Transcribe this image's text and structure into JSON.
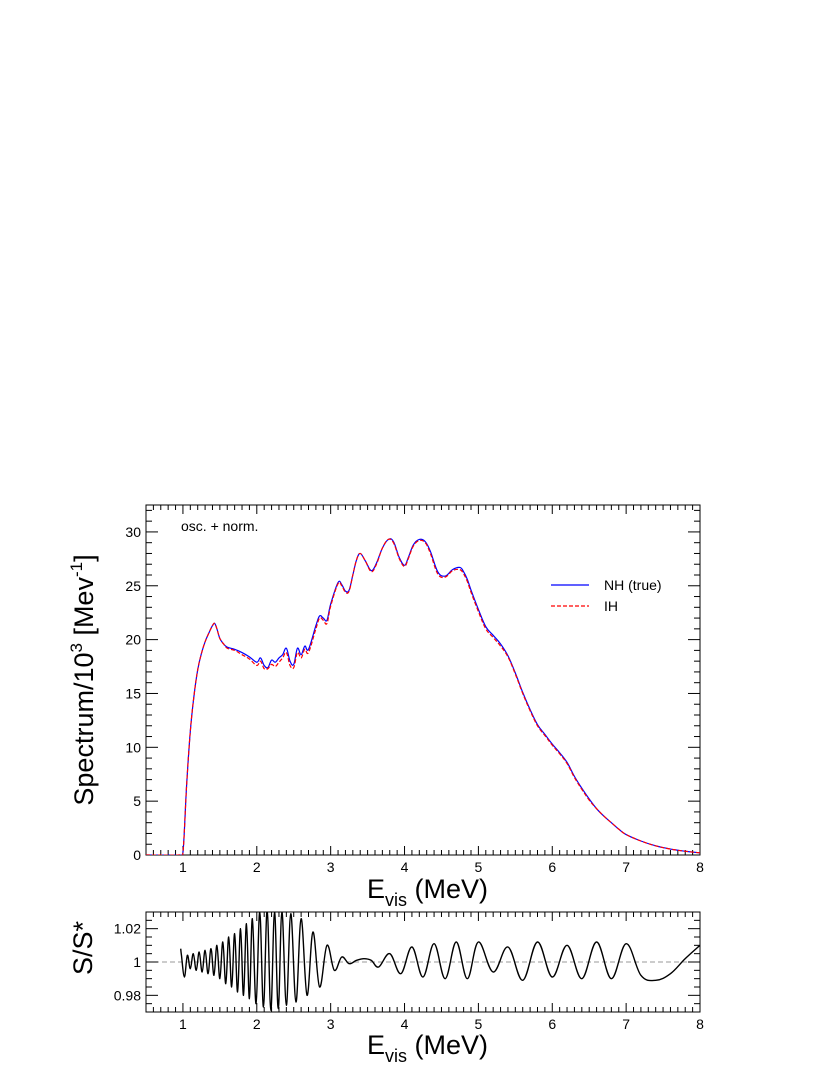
{
  "chart_data": [
    {
      "type": "line",
      "annotation": "osc. + norm.",
      "ylabel": {
        "main": "Spectrum/10",
        "sup1": "3",
        "mid": " [Mev",
        "sup2": "-1",
        "end": "]"
      },
      "xlabel": {
        "main": "E",
        "sub": "vis",
        "end": " (MeV)"
      },
      "xlim": [
        0.5,
        8
      ],
      "ylim": [
        0,
        32.5
      ],
      "xticks": [
        1,
        2,
        3,
        4,
        5,
        6,
        7,
        8
      ],
      "yticks": [
        0,
        5,
        10,
        15,
        20,
        25,
        30
      ],
      "legend_position": "upper-right",
      "series": [
        {
          "name": "NH (true)",
          "color": "#0000ff",
          "style": "solid",
          "x": [
            0.5,
            0.95,
            1.0,
            1.05,
            1.1,
            1.15,
            1.2,
            1.25,
            1.3,
            1.35,
            1.4,
            1.43,
            1.46,
            1.5,
            1.55,
            1.6,
            1.7,
            1.8,
            1.9,
            2.0,
            2.05,
            2.1,
            2.15,
            2.2,
            2.25,
            2.3,
            2.35,
            2.4,
            2.45,
            2.5,
            2.55,
            2.6,
            2.65,
            2.7,
            2.8,
            2.85,
            2.9,
            2.95,
            3.0,
            3.1,
            3.15,
            3.2,
            3.25,
            3.3,
            3.35,
            3.4,
            3.47,
            3.55,
            3.62,
            3.7,
            3.78,
            3.85,
            3.93,
            4.0,
            4.05,
            4.12,
            4.2,
            4.28,
            4.35,
            4.45,
            4.55,
            4.65,
            4.75,
            4.8,
            4.85,
            4.9,
            5.0,
            5.1,
            5.2,
            5.3,
            5.4,
            5.5,
            5.6,
            5.7,
            5.8,
            5.9,
            6.0,
            6.1,
            6.2,
            6.3,
            6.4,
            6.5,
            6.6,
            6.7,
            6.8,
            6.9,
            7.0,
            7.2,
            7.4,
            7.6,
            7.8,
            8.0
          ],
          "y": [
            0,
            0,
            0.2,
            6.5,
            11.5,
            14.8,
            17.2,
            18.7,
            19.8,
            20.6,
            21.3,
            21.5,
            21.0,
            20.1,
            19.6,
            19.3,
            19.1,
            18.8,
            18.4,
            17.9,
            18.3,
            17.6,
            17.4,
            18.1,
            17.9,
            18.3,
            18.6,
            19.2,
            18.0,
            17.7,
            19.2,
            18.6,
            19.4,
            19.1,
            21.3,
            22.2,
            22.0,
            21.8,
            23.3,
            25.3,
            25.1,
            24.5,
            24.6,
            26.0,
            27.4,
            28.0,
            27.3,
            26.4,
            27.1,
            28.5,
            29.3,
            29.1,
            27.6,
            26.9,
            27.6,
            28.8,
            29.3,
            29.1,
            28.2,
            26.3,
            25.9,
            26.5,
            26.7,
            26.3,
            25.6,
            24.6,
            22.8,
            21.2,
            20.4,
            19.6,
            18.5,
            16.9,
            15.1,
            13.5,
            12.1,
            11.2,
            10.3,
            9.5,
            8.6,
            7.3,
            6.2,
            5.2,
            4.3,
            3.6,
            3.0,
            2.4,
            1.9,
            1.3,
            0.85,
            0.55,
            0.35,
            0.2
          ]
        },
        {
          "name": "IH",
          "color": "#ff0000",
          "style": "dashed",
          "x": [
            0.5,
            0.95,
            1.0,
            1.05,
            1.1,
            1.15,
            1.2,
            1.25,
            1.3,
            1.35,
            1.4,
            1.43,
            1.46,
            1.5,
            1.55,
            1.6,
            1.7,
            1.8,
            1.9,
            2.0,
            2.05,
            2.1,
            2.15,
            2.2,
            2.25,
            2.3,
            2.35,
            2.4,
            2.45,
            2.5,
            2.55,
            2.6,
            2.65,
            2.7,
            2.8,
            2.85,
            2.9,
            2.95,
            3.0,
            3.1,
            3.15,
            3.2,
            3.25,
            3.3,
            3.35,
            3.4,
            3.47,
            3.55,
            3.62,
            3.7,
            3.78,
            3.85,
            3.93,
            4.0,
            4.05,
            4.12,
            4.2,
            4.28,
            4.35,
            4.45,
            4.55,
            4.65,
            4.75,
            4.8,
            4.85,
            4.9,
            5.0,
            5.1,
            5.2,
            5.3,
            5.4,
            5.5,
            5.6,
            5.7,
            5.8,
            5.9,
            6.0,
            6.1,
            6.2,
            6.3,
            6.4,
            6.5,
            6.6,
            6.7,
            6.8,
            6.9,
            7.0,
            7.2,
            7.4,
            7.6,
            7.8,
            8.0
          ],
          "y": [
            0,
            0,
            0.2,
            6.5,
            11.5,
            14.8,
            17.2,
            18.7,
            19.8,
            20.6,
            21.3,
            21.5,
            21.0,
            20.1,
            19.6,
            19.2,
            19.0,
            18.6,
            18.2,
            17.6,
            18.0,
            17.3,
            17.3,
            17.7,
            17.5,
            17.9,
            18.3,
            18.8,
            17.6,
            17.4,
            18.8,
            18.3,
            19.1,
            18.8,
            21.0,
            22.0,
            21.8,
            21.5,
            23.1,
            25.2,
            25.0,
            24.4,
            24.5,
            26.0,
            27.4,
            28.0,
            27.3,
            26.3,
            27.0,
            28.5,
            29.3,
            29.0,
            27.5,
            26.8,
            27.5,
            28.7,
            29.2,
            29.0,
            28.0,
            26.1,
            25.8,
            26.4,
            26.5,
            26.1,
            25.4,
            24.4,
            22.6,
            21.0,
            20.2,
            19.4,
            18.4,
            16.8,
            15.0,
            13.4,
            12.0,
            11.1,
            10.2,
            9.4,
            8.5,
            7.2,
            6.1,
            5.1,
            4.3,
            3.6,
            3.0,
            2.4,
            1.9,
            1.3,
            0.85,
            0.55,
            0.35,
            0.2
          ]
        }
      ]
    },
    {
      "type": "line",
      "ylabel": "S/S*",
      "xlabel": {
        "main": "E",
        "sub": "vis",
        "end": " (MeV)"
      },
      "xlim": [
        0.5,
        8
      ],
      "ylim": [
        0.97,
        1.03
      ],
      "xticks": [
        1,
        2,
        3,
        4,
        5,
        6,
        7,
        8
      ],
      "yticks": [
        0.98,
        1,
        1.02
      ],
      "yticklabels": [
        "0.98",
        "1",
        "1.02"
      ],
      "reference_line": {
        "y": 1,
        "style": "dashed",
        "color": "#999999"
      },
      "series": [
        {
          "color": "#000000",
          "style": "solid",
          "x": [
            0.97,
            0.98,
            1.02,
            1.06,
            1.1,
            1.14,
            1.18,
            1.22,
            1.26,
            1.3,
            1.34,
            1.38,
            1.42,
            1.46,
            1.5,
            1.54,
            1.58,
            1.62,
            1.66,
            1.7,
            1.74,
            1.78,
            1.82,
            1.86,
            1.9,
            1.94,
            1.99,
            2.04,
            2.09,
            2.14,
            2.19,
            2.24,
            2.29,
            2.34,
            2.4,
            2.46,
            2.53,
            2.6,
            2.68,
            2.76,
            2.85,
            2.95,
            3.05,
            3.15,
            3.25,
            3.35,
            3.45,
            3.55,
            3.65,
            3.8,
            3.95,
            4.1,
            4.25,
            4.4,
            4.55,
            4.7,
            4.85,
            5.0,
            5.2,
            5.4,
            5.6,
            5.8,
            6.0,
            6.2,
            6.4,
            6.6,
            6.8,
            7.0,
            7.2,
            7.4,
            7.6,
            7.8,
            8.0
          ],
          "y": [
            1.008,
            1.004,
            0.991,
            1.004,
            0.996,
            1.005,
            0.995,
            1.006,
            0.994,
            1.007,
            0.993,
            1.008,
            0.992,
            1.01,
            0.99,
            1.012,
            0.987,
            1.015,
            0.985,
            1.017,
            0.982,
            1.02,
            0.98,
            1.023,
            0.978,
            1.026,
            0.975,
            1.03,
            0.973,
            1.031,
            0.971,
            1.03,
            0.972,
            1.03,
            0.974,
            1.029,
            0.976,
            1.026,
            0.98,
            1.018,
            0.985,
            1.01,
            0.995,
            1.003,
            0.999,
            1.001,
            1.002,
            1.001,
            0.997,
            1.005,
            0.993,
            1.009,
            0.991,
            1.011,
            0.99,
            1.012,
            0.99,
            1.012,
            0.994,
            1.009,
            0.989,
            1.012,
            0.991,
            1.01,
            0.99,
            1.012,
            0.99,
            1.011,
            0.992,
            0.989,
            0.993,
            1.002,
            1.01
          ]
        }
      ]
    }
  ]
}
